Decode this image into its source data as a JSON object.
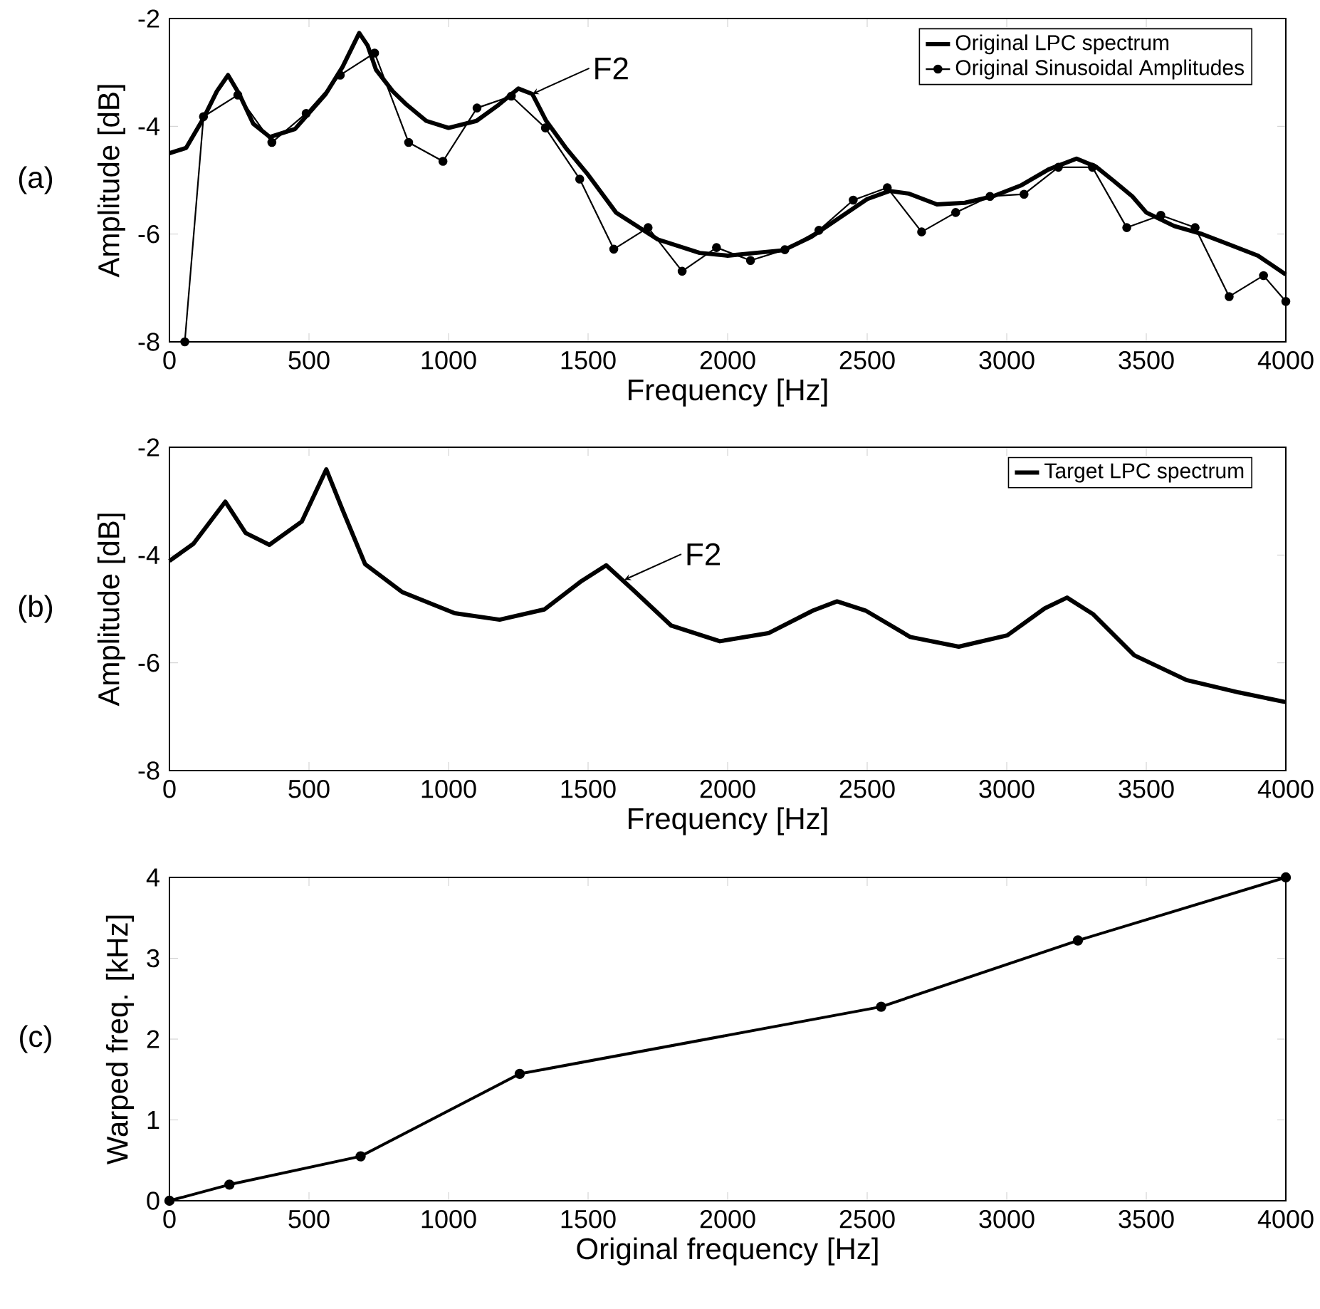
{
  "chart_data": [
    {
      "type": "line",
      "xlabel": "Frequency [Hz]",
      "ylabel": "Amplitude [dB]",
      "xlim": [
        0,
        4000
      ],
      "ylim": [
        -8,
        -2
      ],
      "xticks": [
        0,
        500,
        1000,
        1500,
        2000,
        2500,
        3000,
        3500,
        4000
      ],
      "yticks": [
        -8,
        -6,
        -4,
        -2
      ],
      "grid": false,
      "legend": "top right",
      "annotations": [
        "(a)",
        {
          "text": "F2",
          "x": 1300,
          "y": -3.4
        }
      ],
      "series": [
        {
          "name": "Original LPC spectrum",
          "color": "#000000",
          "marker": "none",
          "x": [
            0,
            60,
            122,
            170,
            210,
            250,
            300,
            360,
            450,
            560,
            620,
            680,
            710,
            740,
            800,
            850,
            920,
            1000,
            1100,
            1180,
            1250,
            1300,
            1350,
            1420,
            1500,
            1600,
            1750,
            1900,
            2000,
            2100,
            2200,
            2300,
            2400,
            2500,
            2580,
            2650,
            2750,
            2850,
            2950,
            3050,
            3150,
            3250,
            3320,
            3380,
            3450,
            3500,
            3600,
            3700,
            3800,
            3900,
            4000
          ],
          "values": [
            -4.5,
            -4.4,
            -3.85,
            -3.35,
            -3.05,
            -3.4,
            -3.95,
            -4.2,
            -4.05,
            -3.4,
            -2.9,
            -2.27,
            -2.5,
            -2.95,
            -3.35,
            -3.6,
            -3.9,
            -4.03,
            -3.9,
            -3.6,
            -3.3,
            -3.4,
            -3.9,
            -4.4,
            -4.9,
            -5.6,
            -6.1,
            -6.35,
            -6.4,
            -6.35,
            -6.3,
            -6.05,
            -5.7,
            -5.35,
            -5.2,
            -5.25,
            -5.45,
            -5.42,
            -5.3,
            -5.1,
            -4.8,
            -4.6,
            -4.75,
            -5.0,
            -5.3,
            -5.6,
            -5.85,
            -6.0,
            -6.2,
            -6.4,
            -6.75
          ]
        },
        {
          "name": "Original Sinusoidal Amplitudes",
          "color": "#000000",
          "marker": "circle",
          "x": [
            55,
            122,
            245,
            367,
            490,
            612,
            735,
            857,
            980,
            1102,
            1225,
            1347,
            1470,
            1592,
            1715,
            1837,
            1960,
            2082,
            2205,
            2327,
            2450,
            2572,
            2695,
            2817,
            2940,
            3062,
            3185,
            3307,
            3430,
            3552,
            3675,
            3797,
            3920,
            4000
          ],
          "values": [
            -8,
            -3.82,
            -3.42,
            -4.3,
            -3.76,
            -3.05,
            -2.64,
            -4.3,
            -4.65,
            -3.66,
            -3.44,
            -4.03,
            -4.98,
            -6.28,
            -5.88,
            -6.69,
            -6.25,
            -6.49,
            -6.29,
            -5.93,
            -5.37,
            -5.14,
            -5.96,
            -5.6,
            -5.3,
            -5.26,
            -4.76,
            -4.76,
            -5.88,
            -5.65,
            -5.88,
            -7.16,
            -6.77,
            -7.25
          ]
        }
      ]
    },
    {
      "type": "line",
      "xlabel": "Frequency [Hz]",
      "ylabel": "Amplitude [dB]",
      "xlim": [
        0,
        4000
      ],
      "ylim": [
        -8,
        -2
      ],
      "xticks": [
        0,
        500,
        1000,
        1500,
        2000,
        2500,
        3000,
        3500,
        4000
      ],
      "yticks": [
        -8,
        -6,
        -4,
        -2
      ],
      "grid": false,
      "legend": "top right",
      "annotations": [
        "(b)",
        {
          "text": "F2",
          "x": 1630,
          "y": -4.46
        }
      ],
      "series": [
        {
          "name": "Target LPC spectrum",
          "color": "#000000",
          "marker": "none",
          "x": [
            0,
            86,
            200,
            273,
            358,
            474,
            562,
            621,
            701,
            835,
            1022,
            1183,
            1343,
            1477,
            1565,
            1664,
            1798,
            1972,
            2146,
            2306,
            2392,
            2494,
            2654,
            2828,
            3002,
            3136,
            3216,
            3310,
            3457,
            3644,
            3832,
            4000
          ],
          "values": [
            -4.11,
            -3.79,
            -3.01,
            -3.59,
            -3.81,
            -3.38,
            -2.41,
            -3.17,
            -4.17,
            -4.69,
            -5.08,
            -5.2,
            -5.01,
            -4.48,
            -4.19,
            -4.66,
            -5.31,
            -5.6,
            -5.45,
            -5.03,
            -4.86,
            -5.03,
            -5.52,
            -5.7,
            -5.49,
            -4.99,
            -4.79,
            -5.1,
            -5.86,
            -6.32,
            -6.55,
            -6.73
          ]
        }
      ]
    },
    {
      "type": "line",
      "xlabel": "Original frequency [Hz]",
      "ylabel": "Warped freq. [kHz]",
      "xlim": [
        0,
        4000
      ],
      "ylim": [
        0,
        4
      ],
      "xticks": [
        0,
        500,
        1000,
        1500,
        2000,
        2500,
        3000,
        3500,
        4000
      ],
      "yticks": [
        0,
        1,
        2,
        3,
        4
      ],
      "grid": false,
      "legend": false,
      "marker": "circle",
      "annotations": [
        "(c)"
      ],
      "series": [
        {
          "color": "#000000",
          "x": [
            0,
            215,
            685,
            1255,
            2550,
            3255,
            4000
          ],
          "values": [
            0,
            0.2,
            0.55,
            1.57,
            2.4,
            3.22,
            4
          ]
        }
      ]
    }
  ]
}
